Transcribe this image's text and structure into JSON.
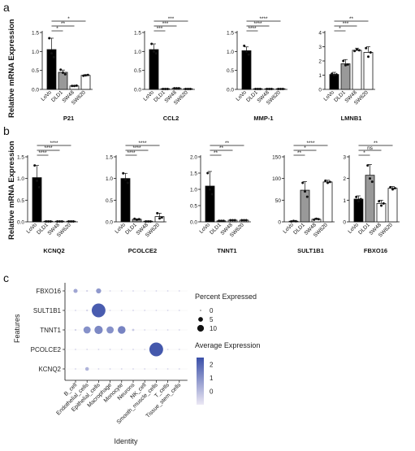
{
  "panels": {
    "a": "a",
    "b": "b",
    "c": "c"
  },
  "y_label_ab": "Relative mRNA Expression",
  "cell_lines": [
    "LoVo",
    "DLD1",
    "SW48",
    "SW620"
  ],
  "bar_colors": {
    "LoVo": "#000000",
    "DLD1": "#999999",
    "SW48": "#ffffff",
    "SW620": "#ffffff"
  },
  "chart_data": [
    {
      "type": "bar",
      "panel": "a",
      "gene": "P21",
      "xlabel": "P21",
      "categories": [
        "LoVo",
        "DLD1",
        "SW48",
        "SW620"
      ],
      "values": [
        1.05,
        0.45,
        0.09,
        0.37
      ],
      "errors": [
        0.3,
        0.06,
        0.01,
        0.02
      ],
      "points": [
        [
          1.35,
          0.95,
          0.85
        ],
        [
          0.52,
          0.44,
          0.4
        ],
        [
          0.09,
          0.09,
          0.1
        ],
        [
          0.36,
          0.37,
          0.38
        ]
      ],
      "ylim": [
        0,
        1.5
      ],
      "yticks": [
        "0.0",
        "0.5",
        "1.0",
        "1.5"
      ],
      "significance": [
        {
          "pair": [
            "LoVo",
            "DLD1"
          ],
          "label": "*"
        },
        {
          "pair": [
            "LoVo",
            "SW48"
          ],
          "label": "**"
        },
        {
          "pair": [
            "LoVo",
            "SW620"
          ],
          "label": "*"
        }
      ]
    },
    {
      "type": "bar",
      "panel": "a",
      "gene": "CCL2",
      "xlabel": "CCL2",
      "categories": [
        "LoVo",
        "DLD1",
        "SW48",
        "SW620"
      ],
      "values": [
        1.05,
        0.01,
        0.03,
        0.01
      ],
      "errors": [
        0.15,
        0.005,
        0.005,
        0.005
      ],
      "points": [
        [
          1.2,
          1.0,
          0.95
        ],
        [
          0.01,
          0.01,
          0.01
        ],
        [
          0.03,
          0.03,
          0.03
        ],
        [
          0.01,
          0.01,
          0.01
        ]
      ],
      "ylim": [
        0,
        1.5
      ],
      "yticks": [
        "0.0",
        "0.5",
        "1.0",
        "1.5"
      ],
      "significance": [
        {
          "pair": [
            "LoVo",
            "DLD1"
          ],
          "label": "***"
        },
        {
          "pair": [
            "LoVo",
            "SW48"
          ],
          "label": "***"
        },
        {
          "pair": [
            "LoVo",
            "SW620"
          ],
          "label": "***"
        }
      ]
    },
    {
      "type": "bar",
      "panel": "a",
      "gene": "MMP-1",
      "xlabel": "MMP-1",
      "categories": [
        "LoVo",
        "DLD1",
        "SW48",
        "SW620"
      ],
      "values": [
        1.02,
        0.01,
        0.01,
        0.01
      ],
      "errors": [
        0.1,
        0.005,
        0.005,
        0.005
      ],
      "points": [
        [
          1.15,
          1.0,
          0.92
        ],
        [
          0.01,
          0.01,
          0.01
        ],
        [
          0.01,
          0.01,
          0.01
        ],
        [
          0.01,
          0.01,
          0.01
        ]
      ],
      "ylim": [
        0,
        1.5
      ],
      "yticks": [
        "0.0",
        "0.5",
        "1.0",
        "1.5"
      ],
      "significance": [
        {
          "pair": [
            "LoVo",
            "DLD1"
          ],
          "label": "****"
        },
        {
          "pair": [
            "LoVo",
            "SW48"
          ],
          "label": "****"
        },
        {
          "pair": [
            "LoVo",
            "SW620"
          ],
          "label": "****"
        }
      ]
    },
    {
      "type": "bar",
      "panel": "a",
      "gene": "LMNB1",
      "xlabel": "LMNB1",
      "categories": [
        "LoVo",
        "DLD1",
        "SW48",
        "SW620"
      ],
      "values": [
        1.05,
        1.8,
        2.75,
        2.6
      ],
      "errors": [
        0.15,
        0.3,
        0.15,
        0.4
      ],
      "points": [
        [
          1.1,
          1.0,
          1.05
        ],
        [
          2.0,
          1.7,
          1.75
        ],
        [
          2.7,
          2.8,
          2.75
        ],
        [
          2.9,
          2.3,
          2.6
        ]
      ],
      "ylim": [
        0,
        4
      ],
      "yticks": [
        "0",
        "1",
        "2",
        "3",
        "4"
      ],
      "significance": [
        {
          "pair": [
            "LoVo",
            "DLD1"
          ],
          "label": "*"
        },
        {
          "pair": [
            "LoVo",
            "SW48"
          ],
          "label": "***"
        },
        {
          "pair": [
            "LoVo",
            "SW620"
          ],
          "label": "**"
        }
      ]
    },
    {
      "type": "bar",
      "panel": "b",
      "gene": "KCNQ2",
      "xlabel": "KCNQ2",
      "categories": [
        "LoVo",
        "DLD1",
        "SW48",
        "SW620"
      ],
      "values": [
        1.02,
        0.01,
        0.01,
        0.01
      ],
      "errors": [
        0.28,
        0.005,
        0.005,
        0.005
      ],
      "points": [
        [
          1.3,
          0.95,
          0.8
        ],
        [
          0.01,
          0.01,
          0.01
        ],
        [
          0.01,
          0.01,
          0.01
        ],
        [
          0.01,
          0.01,
          0.01
        ]
      ],
      "ylim": [
        0,
        1.5
      ],
      "yticks": [
        "0.0",
        "0.5",
        "1.0",
        "1.5"
      ],
      "significance": [
        {
          "pair": [
            "LoVo",
            "DLD1"
          ],
          "label": "****"
        },
        {
          "pair": [
            "LoVo",
            "SW48"
          ],
          "label": "****"
        },
        {
          "pair": [
            "LoVo",
            "SW620"
          ],
          "label": "****"
        }
      ]
    },
    {
      "type": "bar",
      "panel": "b",
      "gene": "PCOLCE2",
      "xlabel": "PCOLCE2",
      "categories": [
        "LoVo",
        "DLD1",
        "SW48",
        "SW620"
      ],
      "values": [
        1.0,
        0.06,
        0.01,
        0.12
      ],
      "errors": [
        0.12,
        0.01,
        0.005,
        0.08
      ],
      "points": [
        [
          1.12,
          0.98,
          0.9
        ],
        [
          0.07,
          0.05,
          0.06
        ],
        [
          0.01,
          0.01,
          0.01
        ],
        [
          0.2,
          0.08,
          0.1
        ]
      ],
      "ylim": [
        0,
        1.5
      ],
      "yticks": [
        "0.0",
        "0.5",
        "1.0",
        "1.5"
      ],
      "significance": [
        {
          "pair": [
            "LoVo",
            "DLD1"
          ],
          "label": "****"
        },
        {
          "pair": [
            "LoVo",
            "SW48"
          ],
          "label": "****"
        },
        {
          "pair": [
            "LoVo",
            "SW620"
          ],
          "label": "****"
        }
      ]
    },
    {
      "type": "bar",
      "panel": "b",
      "gene": "TNNT1",
      "xlabel": "TNNT1",
      "categories": [
        "LoVo",
        "DLD1",
        "SW48",
        "SW620"
      ],
      "values": [
        1.1,
        0.03,
        0.05,
        0.05
      ],
      "errors": [
        0.45,
        0.01,
        0.01,
        0.01
      ],
      "points": [
        [
          1.5,
          1.0,
          0.85
        ],
        [
          0.03,
          0.03,
          0.03
        ],
        [
          0.05,
          0.05,
          0.05
        ],
        [
          0.05,
          0.05,
          0.05
        ]
      ],
      "ylim": [
        0,
        2.0
      ],
      "yticks": [
        "0.0",
        "0.5",
        "1.0",
        "1.5",
        "2.0"
      ],
      "significance": [
        {
          "pair": [
            "LoVo",
            "DLD1"
          ],
          "label": "**"
        },
        {
          "pair": [
            "LoVo",
            "SW48"
          ],
          "label": "**"
        },
        {
          "pair": [
            "LoVo",
            "SW620"
          ],
          "label": "**"
        }
      ]
    },
    {
      "type": "bar",
      "panel": "b",
      "gene": "SULT1B1",
      "xlabel": "SULT1B1",
      "categories": [
        "LoVo",
        "DLD1",
        "SW48",
        "SW620"
      ],
      "values": [
        1.5,
        73,
        6,
        92
      ],
      "errors": [
        0.5,
        20,
        2,
        4
      ],
      "points": [
        [
          1,
          2,
          1.5
        ],
        [
          90,
          70,
          58
        ],
        [
          5,
          7,
          6
        ],
        [
          95,
          90,
          92
        ]
      ],
      "ylim": [
        0,
        150
      ],
      "yticks": [
        "0",
        "50",
        "100",
        "150"
      ],
      "significance": [
        {
          "pair": [
            "LoVo",
            "DLD1"
          ],
          "label": "**"
        },
        {
          "pair": [
            "LoVo",
            "SW48"
          ],
          "label": "*"
        },
        {
          "pair": [
            "LoVo",
            "SW620"
          ],
          "label": "****"
        }
      ]
    },
    {
      "type": "bar",
      "panel": "b",
      "gene": "FBXO16",
      "xlabel": "FBXO16",
      "categories": [
        "LoVo",
        "DLD1",
        "SW48",
        "SW620"
      ],
      "values": [
        1.05,
        2.15,
        0.85,
        1.55
      ],
      "errors": [
        0.15,
        0.5,
        0.15,
        0.08
      ],
      "points": [
        [
          1.15,
          0.95,
          1.05
        ],
        [
          2.6,
          2.0,
          1.85
        ],
        [
          0.95,
          0.75,
          0.85
        ],
        [
          1.6,
          1.5,
          1.55
        ]
      ],
      "ylim": [
        0,
        3
      ],
      "yticks": [
        "0",
        "1",
        "2",
        "3"
      ],
      "significance": [
        {
          "pair": [
            "LoVo",
            "DLD1"
          ],
          "label": "*"
        },
        {
          "pair": [
            "LoVo",
            "SW48"
          ],
          "label": "ns"
        },
        {
          "pair": [
            "LoVo",
            "SW620"
          ],
          "label": "**"
        }
      ]
    },
    {
      "type": "scatter",
      "panel": "c",
      "subtype": "dot_plot",
      "xlabel": "Identity",
      "ylabel": "Features",
      "x_categories": [
        "B_cell",
        "Endothelial_cells",
        "Epithelial_cells",
        "Macrophage",
        "Monocyte",
        "Neurons",
        "NK_cell",
        "Smooth_muscle_cells",
        "T_cells",
        "Tissue_stem_cells"
      ],
      "y_categories": [
        "FBXO16",
        "SULT1B1",
        "TNNT1",
        "PCOLCE2",
        "KCNQ2"
      ],
      "points": [
        {
          "feature": "FBXO16",
          "identity": "B_cell",
          "pct": 1,
          "avg": 0.5
        },
        {
          "feature": "FBXO16",
          "identity": "Epithelial_cells",
          "pct": 1.5,
          "avg": 0.8
        },
        {
          "feature": "FBXO16",
          "identity": "Endothelial_cells",
          "pct": 0.2,
          "avg": -0.5
        },
        {
          "feature": "FBXO16",
          "identity": "Macrophage",
          "pct": 0.1,
          "avg": -0.5
        },
        {
          "feature": "FBXO16",
          "identity": "Monocyte",
          "pct": 0.1,
          "avg": -0.5
        },
        {
          "feature": "FBXO16",
          "identity": "Neurons",
          "pct": 0.1,
          "avg": -0.5
        },
        {
          "feature": "FBXO16",
          "identity": "NK_cell",
          "pct": 0.1,
          "avg": -0.5
        },
        {
          "feature": "FBXO16",
          "identity": "Smooth_muscle_cells",
          "pct": 0.1,
          "avg": -0.5
        },
        {
          "feature": "FBXO16",
          "identity": "T_cells",
          "pct": 0.1,
          "avg": -0.5
        },
        {
          "feature": "FBXO16",
          "identity": "Tissue_stem_cells",
          "pct": 0.1,
          "avg": -0.5
        },
        {
          "feature": "SULT1B1",
          "identity": "B_cell",
          "pct": 0.1,
          "avg": -0.5
        },
        {
          "feature": "SULT1B1",
          "identity": "Endothelial_cells",
          "pct": 0.2,
          "avg": -0.5
        },
        {
          "feature": "SULT1B1",
          "identity": "Epithelial_cells",
          "pct": 11,
          "avg": 2.2
        },
        {
          "feature": "SULT1B1",
          "identity": "Macrophage",
          "pct": 0.1,
          "avg": -0.5
        },
        {
          "feature": "SULT1B1",
          "identity": "Monocyte",
          "pct": 0.1,
          "avg": -0.5
        },
        {
          "feature": "SULT1B1",
          "identity": "Neurons",
          "pct": 0.1,
          "avg": -0.5
        },
        {
          "feature": "SULT1B1",
          "identity": "NK_cell",
          "pct": 0.1,
          "avg": -0.5
        },
        {
          "feature": "SULT1B1",
          "identity": "Smooth_muscle_cells",
          "pct": 0.1,
          "avg": -0.5
        },
        {
          "feature": "SULT1B1",
          "identity": "T_cells",
          "pct": 0.1,
          "avg": -0.5
        },
        {
          "feature": "SULT1B1",
          "identity": "Tissue_stem_cells",
          "pct": 0.1,
          "avg": -0.5
        },
        {
          "feature": "TNNT1",
          "identity": "B_cell",
          "pct": 0.2,
          "avg": -0.5
        },
        {
          "feature": "TNNT1",
          "identity": "Endothelial_cells",
          "pct": 3,
          "avg": 1.0
        },
        {
          "feature": "TNNT1",
          "identity": "Epithelial_cells",
          "pct": 4,
          "avg": 1.2
        },
        {
          "feature": "TNNT1",
          "identity": "Macrophage",
          "pct": 3,
          "avg": 1.0
        },
        {
          "feature": "TNNT1",
          "identity": "Monocyte",
          "pct": 3.5,
          "avg": 1.3
        },
        {
          "feature": "TNNT1",
          "identity": "Neurons",
          "pct": 0.3,
          "avg": -0.3
        },
        {
          "feature": "TNNT1",
          "identity": "NK_cell",
          "pct": 0.1,
          "avg": -0.5
        },
        {
          "feature": "TNNT1",
          "identity": "Smooth_muscle_cells",
          "pct": 0.1,
          "avg": -0.5
        },
        {
          "feature": "TNNT1",
          "identity": "T_cells",
          "pct": 0.1,
          "avg": -0.5
        },
        {
          "feature": "TNNT1",
          "identity": "Tissue_stem_cells",
          "pct": 0.1,
          "avg": -0.5
        },
        {
          "feature": "PCOLCE2",
          "identity": "B_cell",
          "pct": 0.1,
          "avg": -0.5
        },
        {
          "feature": "PCOLCE2",
          "identity": "Endothelial_cells",
          "pct": 0.1,
          "avg": -0.5
        },
        {
          "feature": "PCOLCE2",
          "identity": "Epithelial_cells",
          "pct": 0.1,
          "avg": -0.5
        },
        {
          "feature": "PCOLCE2",
          "identity": "Macrophage",
          "pct": 0.1,
          "avg": -0.5
        },
        {
          "feature": "PCOLCE2",
          "identity": "Monocyte",
          "pct": 0.1,
          "avg": -0.5
        },
        {
          "feature": "PCOLCE2",
          "identity": "Neurons",
          "pct": 0.1,
          "avg": -0.5
        },
        {
          "feature": "PCOLCE2",
          "identity": "NK_cell",
          "pct": 0.1,
          "avg": -0.5
        },
        {
          "feature": "PCOLCE2",
          "identity": "Smooth_muscle_cells",
          "pct": 11,
          "avg": 2.3
        },
        {
          "feature": "PCOLCE2",
          "identity": "T_cells",
          "pct": 0.1,
          "avg": -0.5
        },
        {
          "feature": "PCOLCE2",
          "identity": "Tissue_stem_cells",
          "pct": 0.1,
          "avg": -0.5
        },
        {
          "feature": "KCNQ2",
          "identity": "B_cell",
          "pct": 0.1,
          "avg": -0.5
        },
        {
          "feature": "KCNQ2",
          "identity": "Endothelial_cells",
          "pct": 0.8,
          "avg": 0.2
        },
        {
          "feature": "KCNQ2",
          "identity": "Epithelial_cells",
          "pct": 0.1,
          "avg": -0.5
        },
        {
          "feature": "KCNQ2",
          "identity": "Macrophage",
          "pct": 0.1,
          "avg": -0.5
        },
        {
          "feature": "KCNQ2",
          "identity": "Monocyte",
          "pct": 0.1,
          "avg": -0.5
        },
        {
          "feature": "KCNQ2",
          "identity": "Neurons",
          "pct": 0.1,
          "avg": -0.5
        },
        {
          "feature": "KCNQ2",
          "identity": "NK_cell",
          "pct": 0.1,
          "avg": -0.5
        },
        {
          "feature": "KCNQ2",
          "identity": "Smooth_muscle_cells",
          "pct": 0.1,
          "avg": -0.5
        },
        {
          "feature": "KCNQ2",
          "identity": "T_cells",
          "pct": 0.1,
          "avg": -0.5
        },
        {
          "feature": "KCNQ2",
          "identity": "Tissue_stem_cells",
          "pct": 0.1,
          "avg": -0.5
        }
      ],
      "size_legend": {
        "title": "Percent Expressed",
        "values": [
          0,
          5,
          10
        ],
        "labels": [
          "0",
          "5",
          "10"
        ]
      },
      "color_legend": {
        "title": "Average Expression",
        "ticks": [
          "2",
          "1",
          "0"
        ],
        "range": [
          -1,
          2.5
        ],
        "low_color": "#e8e4f2",
        "high_color": "#3a4fa8"
      }
    }
  ]
}
